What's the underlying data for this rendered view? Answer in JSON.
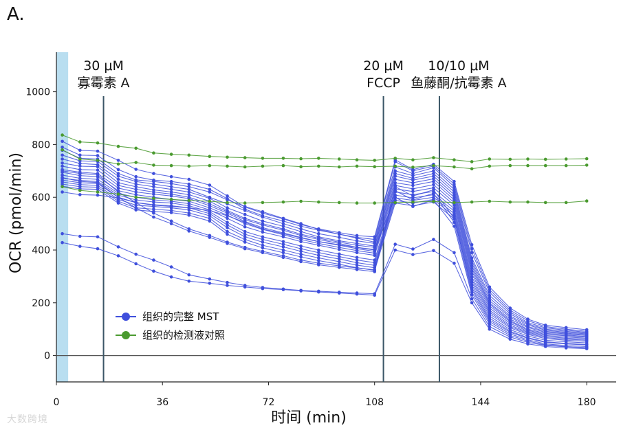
{
  "panel_label": "A.",
  "watermark": "大数跨境",
  "chart_data": {
    "type": "line",
    "xlabel": "时间 (min)",
    "ylabel": "OCR (pmol/min)",
    "xlim": [
      0,
      190
    ],
    "ylim": [
      -100,
      1150
    ],
    "xticks": [
      0,
      36,
      72,
      108,
      144,
      180
    ],
    "yticks": [
      0,
      200,
      400,
      600,
      800,
      1000
    ],
    "baseline_band": [
      0,
      4
    ],
    "injections": [
      {
        "x": 16,
        "lines": [
          "30 μM",
          "寡霉素 A"
        ]
      },
      {
        "x": 111,
        "lines": [
          "20 μM",
          "FCCP"
        ]
      },
      {
        "x": 130,
        "lines": [
          "10/10 μM",
          "鱼藤酮/抗霉素 A"
        ]
      }
    ],
    "x": [
      2,
      8,
      14,
      21,
      27,
      33,
      39,
      45,
      52,
      58,
      64,
      70,
      77,
      83,
      89,
      96,
      102,
      108,
      115,
      121,
      128,
      135,
      141,
      147,
      154,
      160,
      166,
      173,
      180
    ],
    "legend": [
      {
        "name": "组织的完整 MST",
        "color": "#3f4fdc"
      },
      {
        "name": "组织的检测液对照",
        "color": "#4a9a2f"
      }
    ],
    "series_groups": [
      {
        "name": "组织的完整 MST",
        "color": "#3f4fdc",
        "series": [
          {
            "values": [
              812,
              778,
              775,
              740,
              706,
              690,
              678,
              668,
              646,
              605,
              563,
              540,
              518,
              497,
              480,
              466,
              455,
              450,
              742,
              705,
              725,
              660,
              420,
              260,
              180,
              138,
              115,
              106,
              98
            ]
          },
          {
            "values": [
              790,
              760,
              758,
              705,
              678,
              665,
              660,
              650,
              630,
              595,
              555,
              530,
              510,
              490,
              475,
              460,
              448,
              440,
              735,
              700,
              718,
              650,
              405,
              250,
              172,
              132,
              110,
              100,
              92
            ]
          },
          {
            "values": [
              778,
              748,
              745,
              690,
              666,
              660,
              652,
              640,
              620,
              590,
              565,
              545,
              520,
              500,
              478,
              460,
              445,
              430,
              715,
              690,
              712,
              640,
              390,
              240,
              165,
              125,
              105,
              96,
              88
            ]
          },
          {
            "values": [
              760,
              738,
              736,
              680,
              660,
              650,
              640,
              630,
              600,
              575,
              550,
              525,
              500,
              480,
              462,
              448,
              435,
              425,
              700,
              682,
              700,
              630,
              370,
              228,
              158,
              120,
              100,
              92,
              85
            ]
          },
          {
            "values": [
              745,
              728,
              724,
              668,
              650,
              640,
              630,
              620,
              596,
              560,
              535,
              510,
              490,
              470,
              450,
              435,
              425,
              415,
              690,
              672,
              690,
              620,
              360,
              218,
              150,
              116,
              96,
              88,
              82
            ]
          },
          {
            "values": [
              730,
              718,
              716,
              655,
              640,
              628,
              620,
              610,
              585,
              550,
              520,
              500,
              480,
              460,
              445,
              430,
              418,
              410,
              680,
              665,
              680,
              610,
              350,
              208,
              145,
              110,
              92,
              85,
              78
            ]
          },
          {
            "values": [
              718,
              705,
              703,
              645,
              630,
              620,
              612,
              600,
              575,
              545,
              515,
              495,
              475,
              455,
              440,
              425,
              410,
              400,
              668,
              655,
              670,
              600,
              340,
              200,
              138,
              106,
              88,
              82,
              76
            ]
          },
          {
            "values": [
              705,
              695,
              690,
              635,
              620,
              612,
              605,
              595,
              568,
              540,
              508,
              485,
              465,
              448,
              432,
              418,
              405,
              395,
              655,
              645,
              660,
              590,
              330,
              195,
              132,
              100,
              84,
              78,
              72
            ]
          },
          {
            "values": [
              695,
              682,
              678,
              625,
              610,
              600,
              592,
              585,
              560,
              532,
              500,
              478,
              458,
              440,
              425,
              410,
              398,
              388,
              645,
              632,
              648,
              580,
              320,
              188,
              128,
              96,
              80,
              75,
              70
            ]
          },
          {
            "values": [
              684,
              672,
              668,
              615,
              600,
              590,
              585,
              576,
              552,
              520,
              488,
              468,
              450,
              432,
              418,
              402,
              390,
              380,
              632,
              622,
              636,
              570,
              310,
              180,
              122,
              92,
              76,
              70,
              66
            ]
          },
          {
            "values": [
              672,
              664,
              660,
              608,
              590,
              582,
              578,
              568,
              545,
              505,
              470,
              450,
              432,
              415,
              400,
              385,
              372,
              362,
              620,
              610,
              622,
              558,
              298,
              172,
              115,
              88,
              72,
              66,
              62
            ]
          },
          {
            "values": [
              665,
              655,
              652,
              600,
              580,
              572,
              568,
              560,
              538,
              495,
              460,
              440,
              422,
              405,
              390,
              375,
              362,
              352,
              608,
              598,
              610,
              548,
              288,
              165,
              110,
              84,
              68,
              62,
              58
            ]
          },
          {
            "values": [
              658,
              648,
              645,
              592,
              570,
              565,
              560,
              552,
              530,
              485,
              450,
              430,
              412,
              395,
              380,
              366,
              352,
              342,
              598,
              588,
              600,
              538,
              278,
              158,
              105,
              80,
              64,
              58,
              54
            ]
          },
          {
            "values": [
              650,
              640,
              638,
              585,
              560,
              555,
              550,
              540,
              520,
              470,
              440,
              418,
              400,
              384,
              370,
              356,
              343,
              333,
              588,
              578,
              592,
              528,
              268,
              150,
              98,
              74,
              58,
              52,
              48
            ]
          },
          {
            "values": [
              642,
              632,
              630,
              578,
              552,
              546,
              542,
              532,
              510,
              460,
              430,
              408,
              390,
              374,
              360,
              346,
              333,
              323,
              578,
              568,
              582,
              518,
              258,
              142,
              92,
              68,
              52,
              46,
              42
            ]
          },
          {
            "values": [
              700,
              690,
              686,
              620,
              580,
              540,
              510,
              480,
              455,
              430,
              410,
              395,
              378,
              362,
              350,
              340,
              332,
              325,
              640,
              605,
              628,
              520,
              250,
              135,
              88,
              65,
              50,
              44,
              40
            ]
          },
          {
            "values": [
              675,
              660,
              656,
              600,
              560,
              525,
              500,
              472,
              448,
              425,
              405,
              390,
              372,
              356,
              344,
              334,
              326,
              318,
              625,
              590,
              615,
              505,
              240,
              128,
              82,
              60,
              44,
              38,
              34
            ]
          },
          {
            "values": [
              620,
              610,
              608,
              598,
              580,
              570,
              565,
              560,
              550,
              530,
              505,
              480,
              462,
              446,
              432,
              420,
              410,
              402,
              600,
              565,
              590,
              490,
              230,
              120,
              76,
              55,
              40,
              34,
              30
            ]
          },
          {
            "values": [
              462,
              452,
              450,
              412,
              384,
              362,
              336,
              306,
              290,
              277,
              266,
              258,
              252,
              247,
              244,
              240,
              237,
              234,
              422,
              404,
              440,
              390,
              215,
              110,
              70,
              50,
              38,
              33,
              30
            ]
          },
          {
            "values": [
              428,
              414,
              405,
              378,
              348,
              320,
              298,
              282,
              274,
              266,
              260,
              254,
              250,
              245,
              241,
              237,
              233,
              229,
              400,
              383,
              398,
              350,
              200,
              100,
              62,
              44,
              34,
              29,
              26
            ]
          }
        ]
      },
      {
        "name": "组织的检测液对照",
        "color": "#4a9a2f",
        "series": [
          {
            "values": [
              836,
              810,
              806,
              793,
              786,
              768,
              763,
              760,
              755,
              752,
              750,
              748,
              748,
              746,
              748,
              745,
              742,
              740,
              748,
              742,
              750,
              742,
              735,
              745,
              744,
              745,
              744,
              745,
              746
            ]
          },
          {
            "values": [
              780,
              745,
              740,
              726,
              732,
              722,
              720,
              718,
              720,
              718,
              715,
              718,
              720,
              716,
              718,
              715,
              718,
              716,
              718,
              714,
              720,
              715,
              708,
              718,
              720,
              720,
              720,
              720,
              722
            ]
          },
          {
            "values": [
              640,
              626,
              620,
              612,
              600,
              596,
              592,
              588,
              585,
              580,
              578,
              580,
              582,
              585,
              582,
              580,
              578,
              578,
              580,
              582,
              584,
              580,
              582,
              585,
              582,
              582,
              580,
              580,
              586
            ]
          }
        ]
      }
    ]
  }
}
